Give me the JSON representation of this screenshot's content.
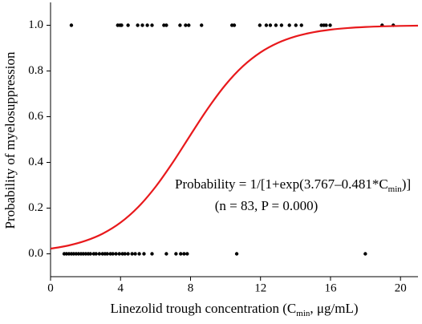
{
  "chart_data": {
    "type": "scatter",
    "xlabel": {
      "text": "Linezolid trough concentration (C",
      "sub": "min",
      "tail": ", μg/mL)"
    },
    "ylabel": "Probability of myelosuppression",
    "annotations": [
      {
        "text": "Probability = 1/[1+exp(3.767–0.481*C",
        "sub": "min",
        "tail": ")]"
      },
      {
        "text": "(n = 83, P = 0.000)"
      }
    ],
    "xlim": [
      0,
      21
    ],
    "ylim": [
      -0.1,
      1.1
    ],
    "xticks": [
      0,
      4,
      8,
      12,
      16,
      20
    ],
    "yticks": [
      {
        "value": 0,
        "label": "0.0"
      },
      0.2,
      0.4,
      0.6,
      0.8,
      {
        "value": 1,
        "label": "1.0"
      }
    ],
    "series": [
      {
        "type": "scatter",
        "color": "#000000",
        "x": [
          1.19,
          3.84,
          3.97,
          4.06,
          4.43,
          4.98,
          5.25,
          5.53,
          5.8,
          6.48,
          6.62,
          7.4,
          7.72,
          7.9,
          8.63,
          10.37,
          10.5,
          11.96,
          12.33,
          12.56,
          12.88,
          13.2,
          13.65,
          14.02,
          14.34,
          15.48,
          15.62,
          15.75,
          15.98,
          18.95,
          19.59,
          0.78,
          0.91,
          1.05,
          1.19,
          1.32,
          1.46,
          1.6,
          1.74,
          1.87,
          2.01,
          2.15,
          2.28,
          2.47,
          2.6,
          2.79,
          2.97,
          3.11,
          3.24,
          3.42,
          3.56,
          3.74,
          3.93,
          4.11,
          4.25,
          4.43,
          4.66,
          4.84,
          5.07,
          5.34,
          5.8,
          6.62,
          7.17,
          7.44,
          7.63,
          7.81,
          10.64,
          17.99
        ],
        "values": [
          1,
          1,
          1,
          1,
          1,
          1,
          1,
          1,
          1,
          1,
          1,
          1,
          1,
          1,
          1,
          1,
          1,
          1,
          1,
          1,
          1,
          1,
          1,
          1,
          1,
          1,
          1,
          1,
          1,
          1,
          1,
          0,
          0,
          0,
          0,
          0,
          0,
          0,
          0,
          0,
          0,
          0,
          0,
          0,
          0,
          0,
          0,
          0,
          0,
          0,
          0,
          0,
          0,
          0,
          0,
          0,
          0,
          0,
          0,
          0,
          0,
          0,
          0,
          0,
          0,
          0,
          0,
          0
        ]
      },
      {
        "type": "line",
        "color": "#e8191c",
        "x": [
          0,
          1,
          2,
          3,
          4,
          5,
          6,
          7,
          8,
          9,
          10,
          11,
          12,
          13,
          14,
          15,
          16,
          17,
          18,
          19,
          20,
          21
        ],
        "values": [
          0.0226,
          0.036,
          0.0571,
          0.0891,
          0.1367,
          0.2039,
          0.293,
          0.4013,
          0.5203,
          0.6369,
          0.7395,
          0.8211,
          0.8813,
          0.9231,
          0.951,
          0.9692,
          0.9807,
          0.988,
          0.9925,
          0.9954,
          0.9971,
          0.9982
        ]
      }
    ]
  }
}
